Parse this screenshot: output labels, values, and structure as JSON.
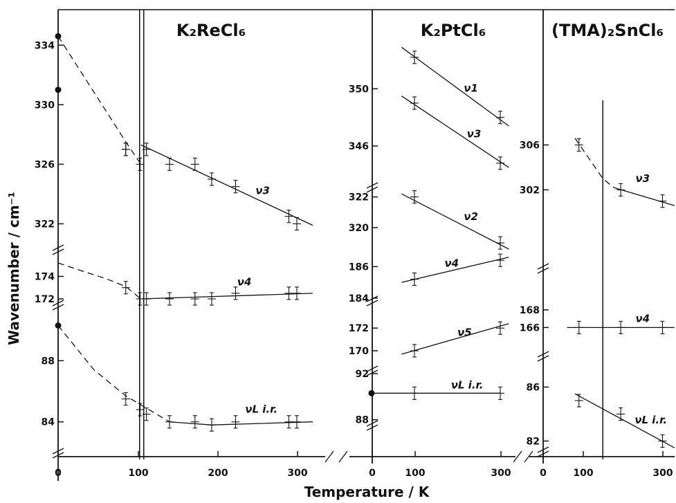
{
  "chart_data": {
    "type": "scatter",
    "xlabel": "Temperature / K",
    "ylabel": "Wavenumber / cm⁻¹",
    "panels": [
      {
        "title": "K₂ReCl₆",
        "x_ticks": [
          "0",
          "100",
          "200",
          "300"
        ],
        "xlim": [
          0,
          340
        ],
        "transition_temperature_K": 105,
        "segments": [
          {
            "ylim": [
              321,
              335.5
            ],
            "y_ticks": [
              "322",
              "326",
              "330",
              "334"
            ],
            "series": [
              {
                "name": "ν3",
                "points": [
                  [
                    0,
                    334.6
                  ],
                  [
                    85,
                    327
                  ],
                  [
                    103,
                    326
                  ],
                  [
                    111,
                    327
                  ],
                  [
                    140,
                    326
                  ],
                  [
                    172,
                    326
                  ],
                  [
                    193,
                    325
                  ],
                  [
                    223,
                    324.5
                  ],
                  [
                    290,
                    322.5
                  ],
                  [
                    300,
                    322
                  ]
                ],
                "fits": [
                  {
                    "x": [
                      0,
                      85,
                      104
                    ],
                    "y": [
                      334.6,
                      327.5,
                      326
                    ],
                    "style": "dashed"
                  },
                  {
                    "x": [
                      104,
                      320
                    ],
                    "y": [
                      327.3,
                      321.9
                    ],
                    "style": "solid"
                  }
                ],
                "label": "ν3",
                "label_at": [
                  248,
                  324
                ]
              },
              {
                "name": "ν3 (second)",
                "points": [
                  [
                    0,
                    331
                  ],
                  [
                    85,
                    327
                  ]
                ],
                "fits": [],
                "label": "",
                "label_at": null
              }
            ]
          },
          {
            "ylim": [
              171.2,
              175.2
            ],
            "y_ticks": [
              "172",
              "174"
            ],
            "series": [
              {
                "name": "ν4",
                "points": [
                  [
                    85,
                    173
                  ],
                  [
                    103,
                    172
                  ],
                  [
                    111,
                    172
                  ],
                  [
                    140,
                    172
                  ],
                  [
                    172,
                    172
                  ],
                  [
                    193,
                    172
                  ],
                  [
                    223,
                    172.5
                  ],
                  [
                    290,
                    172.5
                  ],
                  [
                    300,
                    172.5
                  ]
                ],
                "fits": [
                  {
                    "x": [
                      0,
                      25,
                      60,
                      85,
                      104
                    ],
                    "y": [
                      175.2,
                      174.6,
                      173.8,
                      173.1,
                      172
                    ],
                    "style": "dashed"
                  },
                  {
                    "x": [
                      104,
                      320
                    ],
                    "y": [
                      172,
                      172.5
                    ],
                    "style": "solid"
                  }
                ],
                "label": "ν4",
                "label_at": [
                  225,
                  173.2
                ]
              }
            ]
          },
          {
            "ylim": [
              81.5,
              91
            ],
            "y_ticks": [
              "84",
              "88"
            ],
            "series": [
              {
                "name": "νL i.r.",
                "points": [
                  [
                    0,
                    90.3
                  ],
                  [
                    85,
                    85.5
                  ],
                  [
                    103,
                    84.8
                  ],
                  [
                    111,
                    84.5
                  ],
                  [
                    140,
                    84
                  ],
                  [
                    172,
                    84
                  ],
                  [
                    193,
                    83.8
                  ],
                  [
                    223,
                    84
                  ],
                  [
                    290,
                    84
                  ],
                  [
                    300,
                    84
                  ]
                ],
                "fits": [
                  {
                    "x": [
                      0,
                      45,
                      85,
                      140
                    ],
                    "y": [
                      90.3,
                      87.4,
                      85.7,
                      84
                    ],
                    "style": "dashed"
                  },
                  {
                    "x": [
                      140,
                      193,
                      320
                    ],
                    "y": [
                      84,
                      83.8,
                      84
                    ],
                    "style": "solid"
                  }
                ],
                "label": "νL i.r.",
                "label_at": [
                  235,
                  84.6
                ]
              }
            ]
          }
        ]
      },
      {
        "title": "K₂PtCl₆",
        "x_ticks": [
          "0",
          "100",
          "300"
        ],
        "xlim": [
          0,
          330
        ],
        "segments": [
          {
            "ylim": [
              344.6,
              353.4
            ],
            "y_ticks": [
              "346",
              "350"
            ],
            "series": [
              {
                "name": "ν1",
                "points": [
                  [
                    100,
                    352.2
                  ],
                  [
                    300,
                    348
                  ]
                ],
                "fits": [
                  {
                    "x": [
                      70,
                      320
                    ],
                    "y": [
                      352.9,
                      347.4
                    ],
                    "style": "solid"
                  }
                ],
                "label": "ν1",
                "label_at": [
                  215,
                  349.8
                ]
              },
              {
                "name": "ν3",
                "points": [
                  [
                    100,
                    349
                  ],
                  [
                    300,
                    344.8
                  ]
                ],
                "fits": [
                  {
                    "x": [
                      70,
                      320
                    ],
                    "y": [
                      349.5,
                      344.5
                    ],
                    "style": "solid"
                  }
                ],
                "label": "ν3",
                "label_at": [
                  222,
                  346.6
                ]
              }
            ]
          },
          {
            "ylim": [
              318.6,
              323.2
            ],
            "y_ticks": [
              "320",
              "322"
            ],
            "series": [
              {
                "name": "ν2",
                "points": [
                  [
                    100,
                    322
                  ],
                  [
                    300,
                    319
                  ]
                ],
                "fits": [
                  {
                    "x": [
                      70,
                      320
                    ],
                    "y": [
                      322.2,
                      318.6
                    ],
                    "style": "solid"
                  }
                ],
                "label": "ν2",
                "label_at": [
                  215,
                  320.5
                ]
              }
            ]
          },
          {
            "ylim": [
              183.6,
              187.2
            ],
            "y_ticks": [
              "184",
              "186"
            ],
            "series": [
              {
                "name": "ν4",
                "points": [
                  [
                    100,
                    185.2
                  ],
                  [
                    300,
                    186.4
                  ]
                ],
                "fits": [
                  {
                    "x": [
                      70,
                      320
                    ],
                    "y": [
                      185,
                      186.6
                    ],
                    "style": "solid"
                  }
                ],
                "label": "ν4",
                "label_at": [
                  170,
                  186
                ]
              }
            ]
          },
          {
            "ylim": [
              168.9,
              173.6
            ],
            "y_ticks": [
              "170",
              "172"
            ],
            "series": [
              {
                "name": "ν5",
                "points": [
                  [
                    100,
                    170
                  ],
                  [
                    300,
                    172
                  ]
                ],
                "fits": [
                  {
                    "x": [
                      70,
                      320
                    ],
                    "y": [
                      169.7,
                      172.4
                    ],
                    "style": "solid"
                  }
                ],
                "label": "ν5",
                "label_at": [
                  200,
                  171.3
                ]
              }
            ]
          },
          {
            "ylim": [
              87.2,
              92.3
            ],
            "y_ticks": [
              "88",
              "92"
            ],
            "series": [
              {
                "name": "νL i.r.",
                "points": [
                  [
                    0,
                    90.3
                  ],
                  [
                    100,
                    90.3
                  ],
                  [
                    300,
                    90.3
                  ]
                ],
                "fits": [
                  {
                    "x": [
                      0,
                      300
                    ],
                    "y": [
                      90.3,
                      90.3
                    ],
                    "style": "solid"
                  }
                ],
                "label": "νL i.r.",
                "label_at": [
                  185,
                  90.7
                ]
              }
            ]
          }
        ]
      },
      {
        "title": "(TMA)₂SnCl₆",
        "x_ticks": [
          "0",
          "100",
          "300"
        ],
        "xlim": [
          0,
          330
        ],
        "transition_temperature_K": 150,
        "segments": [
          {
            "ylim": [
              299.5,
              307.2
            ],
            "y_ticks": [
              "302",
              "306"
            ],
            "series": [
              {
                "name": "ν3",
                "points": [
                  [
                    90,
                    306
                  ],
                  [
                    195,
                    302
                  ],
                  [
                    300,
                    301
                  ]
                ],
                "fits": [
                  {
                    "x": [
                      80,
                      150,
                      178
                    ],
                    "y": [
                      306.6,
                      303,
                      302.2
                    ],
                    "style": "dashed"
                  },
                  {
                    "x": [
                      178,
                      330
                    ],
                    "y": [
                      302.2,
                      300.6
                    ],
                    "style": "solid"
                  }
                ],
                "label": "ν3",
                "label_at": [
                  232,
                  302.7
                ]
              }
            ]
          },
          {
            "ylim": [
              164.3,
              169.8
            ],
            "y_ticks": [
              "166",
              "168"
            ],
            "series": [
              {
                "name": "ν4",
                "points": [
                  [
                    90,
                    166
                  ],
                  [
                    195,
                    166
                  ],
                  [
                    300,
                    166
                  ]
                ],
                "fits": [
                  {
                    "x": [
                      60,
                      330
                    ],
                    "y": [
                      166,
                      166
                    ],
                    "style": "solid"
                  }
                ],
                "label": "ν4",
                "label_at": [
                  232,
                  166.6
                ]
              }
            ]
          },
          {
            "ylim": [
              81.1,
              87
            ],
            "y_ticks": [
              "82",
              "86"
            ],
            "series": [
              {
                "name": "νL i.r.",
                "points": [
                  [
                    90,
                    85
                  ],
                  [
                    195,
                    84
                  ],
                  [
                    300,
                    82
                  ]
                ],
                "fits": [
                  {
                    "x": [
                      80,
                      330
                    ],
                    "y": [
                      85.5,
                      81.5
                    ],
                    "style": "solid"
                  }
                ],
                "label": "νL i.r.",
                "label_at": [
                  230,
                  83.3
                ]
              }
            ]
          }
        ]
      }
    ]
  }
}
